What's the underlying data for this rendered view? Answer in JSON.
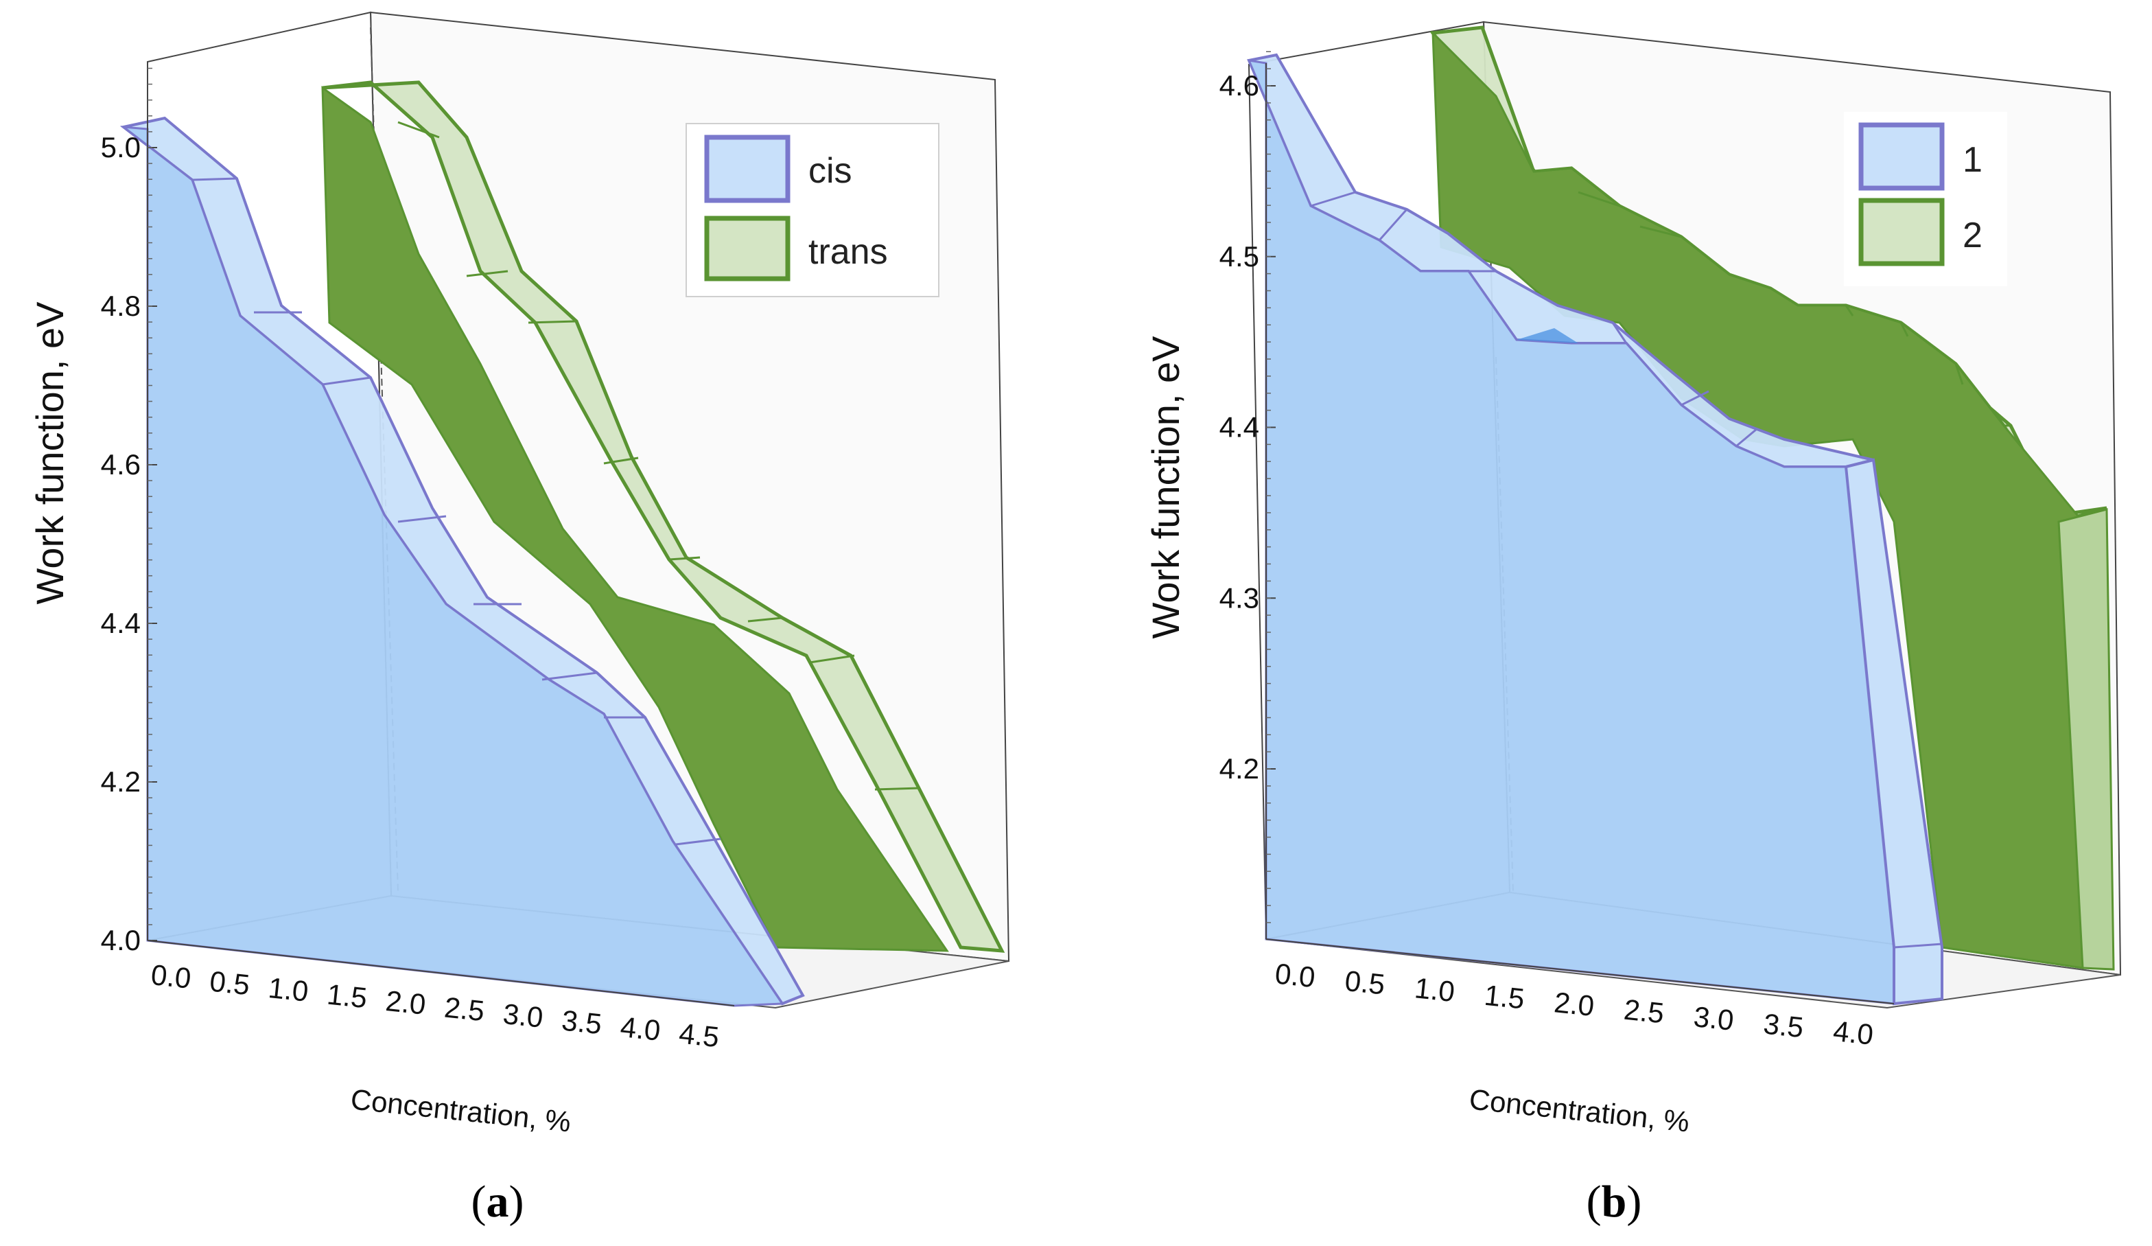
{
  "chart_data": [
    {
      "panel_label": "a",
      "type": "area",
      "subtype": "3d-ribbon",
      "xlabel": "Concentration, %",
      "ylabel": "Work function, eV",
      "ylim": [
        4.0,
        5.1
      ],
      "y_ticks": [
        "4.0",
        "4.2",
        "4.4",
        "4.6",
        "4.8",
        "5.0"
      ],
      "x_ticks": [
        "0.0",
        "0.5",
        "1.0",
        "1.5",
        "2.0",
        "2.5",
        "3.0",
        "3.5",
        "4.0",
        "4.5"
      ],
      "legend_position": "top-right",
      "series": [
        {
          "name": "cis",
          "color": "#a8cdf5",
          "edge_color": "#7a78cc",
          "x": [
            0.0,
            0.5,
            1.0,
            1.5,
            2.0,
            2.5,
            3.0,
            3.5,
            4.0,
            4.5
          ],
          "values": [
            5.03,
            4.97,
            4.79,
            4.71,
            4.54,
            4.43,
            4.34,
            4.29,
            4.12,
            4.0
          ]
        },
        {
          "name": "trans",
          "color": "#6c9e3e",
          "edge_color": "#5a9432",
          "x": [
            0.0,
            0.5,
            1.0,
            1.5,
            2.0,
            2.5,
            3.0,
            3.5,
            4.0,
            4.5
          ],
          "values": [
            5.08,
            5.02,
            4.83,
            4.78,
            4.6,
            4.48,
            4.42,
            4.36,
            4.2,
            4.0
          ]
        }
      ]
    },
    {
      "panel_label": "b",
      "type": "area",
      "subtype": "3d-ribbon",
      "xlabel": "Concentration, %",
      "ylabel": "Work function, eV",
      "ylim": [
        4.1,
        4.62
      ],
      "y_ticks": [
        "4.2",
        "4.3",
        "4.4",
        "4.5",
        "4.6"
      ],
      "x_ticks": [
        "0.0",
        "0.5",
        "1.0",
        "1.5",
        "2.0",
        "2.5",
        "3.0",
        "3.5",
        "4.0"
      ],
      "legend_position": "top-right",
      "series": [
        {
          "name": "1",
          "color": "#a8cdf5",
          "edge_color": "#7a78cc",
          "x": [
            0.0,
            0.5,
            1.0,
            1.5,
            2.0,
            2.5,
            3.0,
            3.5,
            4.0
          ],
          "values": [
            4.61,
            4.53,
            4.49,
            4.44,
            4.46,
            4.42,
            4.39,
            4.37,
            4.1
          ]
        },
        {
          "name": "2",
          "color": "#6c9e3e",
          "edge_color": "#5a9432",
          "x": [
            0.0,
            0.5,
            1.0,
            1.5,
            2.0,
            2.5,
            3.0,
            3.5,
            4.0
          ],
          "values": [
            4.62,
            4.55,
            4.53,
            4.5,
            4.47,
            4.48,
            4.45,
            4.34,
            4.1
          ]
        }
      ]
    }
  ]
}
